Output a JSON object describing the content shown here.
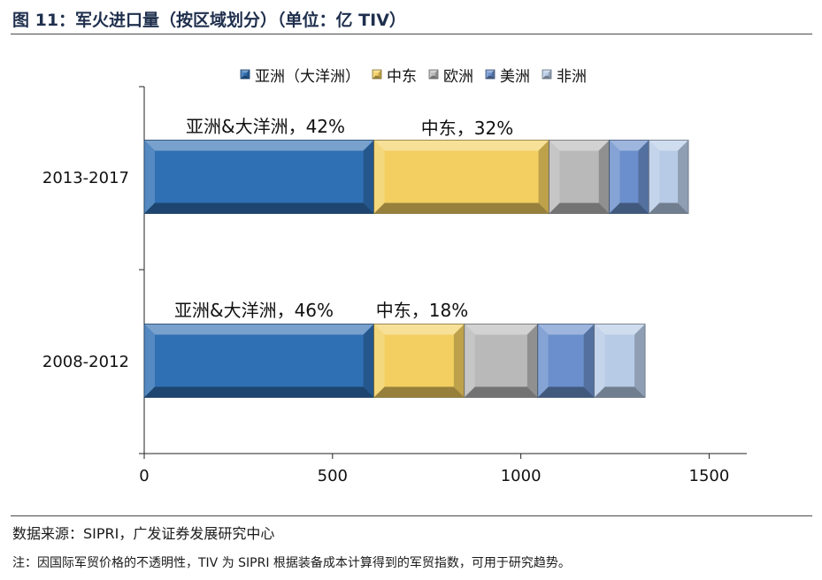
{
  "title": "图 11：军火进口量（按区域划分）（单位：亿 TIV）",
  "source": "数据来源：SIPRI，广发证券发展研究中心",
  "note": "注：因国际军贸价格的不透明性，TIV 为 SIPRI 根据装备成本计算得到的军贸指数，可用于研究趋势。",
  "colors": {
    "亚洲（大洋洲）": "#2f6fb3",
    "中东": "#f2cf60",
    "欧洲": "#b9b9b9",
    "美洲": "#6a8fcc",
    "非洲": "#b7cbe6"
  },
  "chart_data": {
    "type": "bar",
    "orientation": "horizontal",
    "stacked": true,
    "categories": [
      "2013-2017",
      "2008-2012"
    ],
    "series": [
      {
        "name": "亚洲（大洋洲）",
        "values": [
          610,
          610
        ]
      },
      {
        "name": "中东",
        "values": [
          465,
          240
        ]
      },
      {
        "name": "欧洲",
        "values": [
          160,
          195
        ]
      },
      {
        "name": "美洲",
        "values": [
          105,
          150
        ]
      },
      {
        "name": "非洲",
        "values": [
          105,
          135
        ]
      }
    ],
    "xlim": [
      0,
      1600
    ],
    "xticks": [
      0,
      500,
      1000,
      1500
    ],
    "legend_position": "top",
    "grid": false,
    "annotations": [
      {
        "category": "2013-2017",
        "text": "亚洲&大洋洲，42%"
      },
      {
        "category": "2013-2017",
        "text": "中东，32%"
      },
      {
        "category": "2008-2012",
        "text": "亚洲&大洋洲，46%"
      },
      {
        "category": "2008-2012",
        "text": "中东，18%"
      }
    ]
  }
}
